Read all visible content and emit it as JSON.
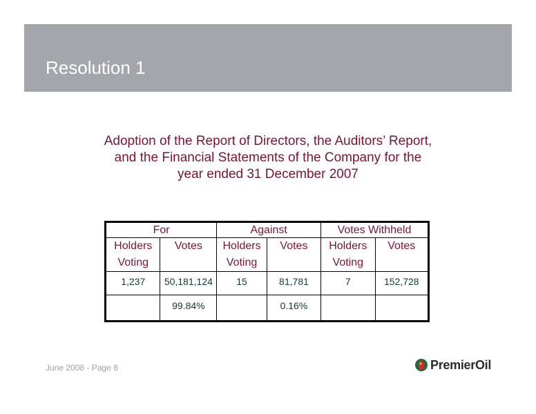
{
  "slide": {
    "title": "Resolution 1",
    "description_lines": [
      "Adoption of the Report of Directors, the Auditors’ Report,",
      "and the Financial Statements of the Company for the",
      "year ended 31 December 2007"
    ]
  },
  "table": {
    "groups": [
      "For",
      "Against",
      "Votes Withheld"
    ],
    "sub_headers": [
      "Holders Voting",
      "Votes",
      "Holders Voting",
      "Votes",
      "Holders Voting",
      "Votes"
    ],
    "rows": [
      [
        "1,237",
        "50,181,124",
        "15",
        "81,781",
        "7",
        "152,728"
      ],
      [
        "",
        "99.84%",
        "",
        "0.16%",
        "",
        ""
      ]
    ]
  },
  "footer": {
    "text": "June 2008 - Page 8",
    "brand": "PremierOil"
  },
  "colors": {
    "header_band": "#a3a6ab",
    "accent_maroon": "#7a1530",
    "data_green": "#0f3a32"
  }
}
